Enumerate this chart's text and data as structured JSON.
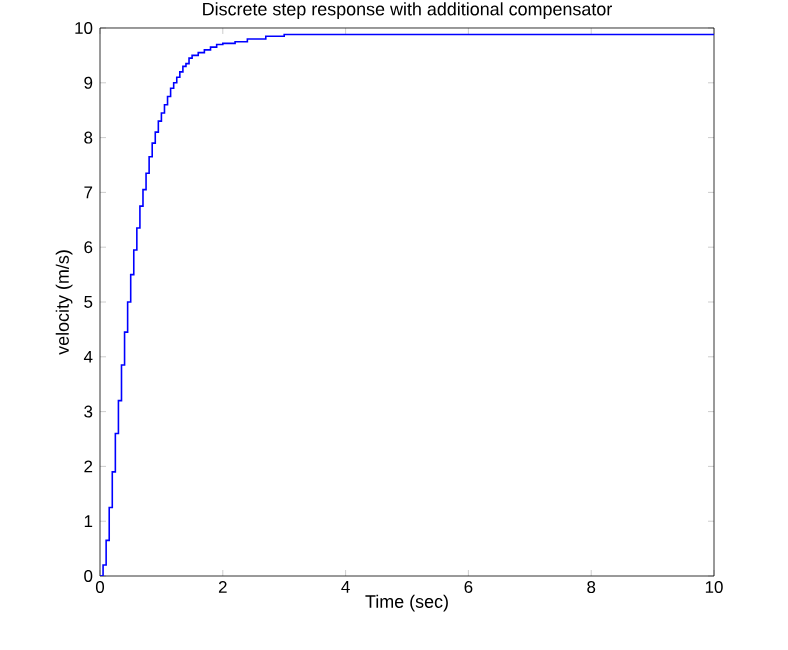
{
  "chart_data": {
    "type": "step",
    "title": "Discrete step response with additional compensator",
    "xlabel": "Time (sec)",
    "ylabel": "velocity (m/s)",
    "x": [
      0,
      0.05,
      0.1,
      0.15,
      0.2,
      0.25,
      0.3,
      0.35,
      0.4,
      0.45,
      0.5,
      0.55,
      0.6,
      0.65,
      0.7,
      0.75,
      0.8,
      0.85,
      0.9,
      0.95,
      1.0,
      1.05,
      1.1,
      1.15,
      1.2,
      1.25,
      1.3,
      1.35,
      1.4,
      1.45,
      1.5,
      1.6,
      1.7,
      1.8,
      1.9,
      2.0,
      2.2,
      2.4,
      2.7,
      3.0,
      10
    ],
    "values": [
      0,
      0.2,
      0.65,
      1.25,
      1.9,
      2.6,
      3.2,
      3.85,
      4.45,
      5.0,
      5.5,
      5.95,
      6.35,
      6.75,
      7.05,
      7.35,
      7.65,
      7.9,
      8.1,
      8.3,
      8.45,
      8.6,
      8.75,
      8.9,
      9.0,
      9.1,
      9.2,
      9.3,
      9.35,
      9.45,
      9.5,
      9.55,
      9.6,
      9.65,
      9.7,
      9.72,
      9.75,
      9.8,
      9.85,
      9.88,
      9.88
    ],
    "color": "#0000ff",
    "xlim": [
      0,
      10
    ],
    "ylim": [
      0,
      10
    ],
    "xticks": [
      0,
      2,
      4,
      6,
      8,
      10
    ],
    "yticks": [
      0,
      1,
      2,
      3,
      4,
      5,
      6,
      7,
      8,
      9,
      10
    ]
  }
}
